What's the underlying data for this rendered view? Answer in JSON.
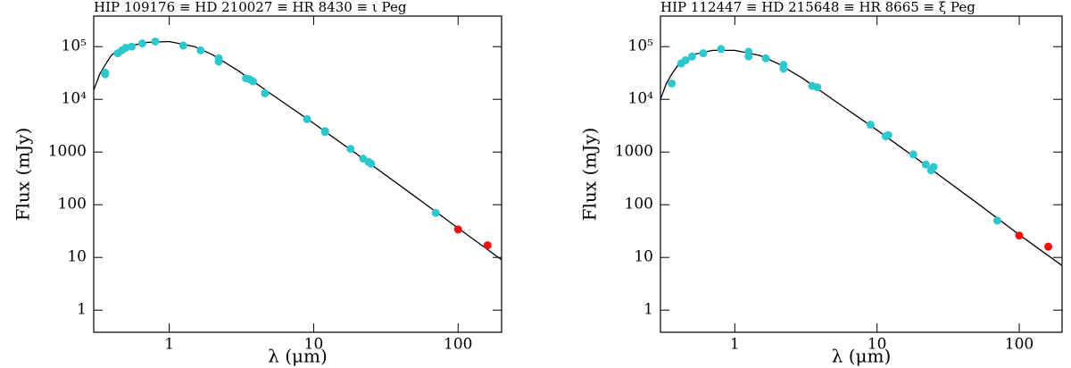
{
  "chart_data": [
    {
      "type": "scatter",
      "title": "HIP 109176 ≡ HD 210027 ≡ HR 8430 ≡ ι Peg",
      "xlabel": "λ (μm)",
      "ylabel": "Flux (mJy)",
      "xscale": "log",
      "yscale": "log",
      "xlim": [
        0.3,
        200
      ],
      "ylim": [
        0.38,
        380000
      ],
      "xticks": [
        1,
        10,
        100
      ],
      "yticks": [
        1,
        10,
        100,
        1000,
        {
          "value": 10000,
          "label": "10⁴"
        },
        {
          "value": 100000,
          "label": "10⁵"
        }
      ],
      "series": [
        {
          "mode": "line",
          "color": "#000000",
          "x": [
            0.3,
            0.33,
            0.36,
            0.4,
            0.5,
            0.7,
            1,
            1.5,
            2,
            3,
            5,
            10,
            20,
            50,
            100,
            200
          ],
          "values": [
            15000,
            30000,
            45000,
            70000,
            100000,
            120000,
            125000,
            100000,
            70000,
            35000,
            13000,
            3500,
            900,
            145,
            36,
            9
          ]
        },
        {
          "mode": "markers",
          "color": "#2ec8cc",
          "x": [
            0.36,
            0.36,
            0.44,
            0.47,
            0.5,
            0.55,
            0.65,
            0.8,
            1.25,
            1.65,
            2.2,
            2.2,
            3.4,
            3.6,
            3.8,
            4.6,
            9,
            12,
            12,
            18,
            22,
            24,
            25,
            70
          ],
          "values": [
            32000,
            30000,
            75000,
            85000,
            95000,
            100000,
            115000,
            125000,
            105000,
            85000,
            60000,
            52000,
            25000,
            24000,
            22000,
            13000,
            4200,
            2500,
            2400,
            1150,
            750,
            650,
            600,
            70
          ]
        },
        {
          "mode": "markers",
          "color": "#ee1111",
          "x": [
            100,
            160
          ],
          "values": [
            34,
            17
          ]
        }
      ]
    },
    {
      "type": "scatter",
      "title": "HIP 112447 ≡ HD 215648 ≡ HR 8665 ≡ ξ Peg",
      "xlabel": "λ (μm)",
      "ylabel": "Flux (mJy)",
      "xscale": "log",
      "yscale": "log",
      "xlim": [
        0.3,
        200
      ],
      "ylim": [
        0.38,
        380000
      ],
      "xticks": [
        1,
        10,
        100
      ],
      "yticks": [
        1,
        10,
        100,
        1000,
        {
          "value": 10000,
          "label": "10⁴"
        },
        {
          "value": 100000,
          "label": "10⁵"
        }
      ],
      "series": [
        {
          "mode": "line",
          "color": "#000000",
          "x": [
            0.3,
            0.33,
            0.36,
            0.4,
            0.5,
            0.7,
            1,
            1.5,
            2,
            3,
            5,
            10,
            20,
            50,
            100,
            200
          ],
          "values": [
            10000,
            20000,
            30000,
            45000,
            70000,
            85000,
            85000,
            68000,
            48000,
            25000,
            9500,
            2600,
            680,
            110,
            27,
            7
          ]
        },
        {
          "mode": "markers",
          "color": "#2ec8cc",
          "x": [
            0.36,
            0.42,
            0.45,
            0.5,
            0.6,
            0.8,
            1.25,
            1.25,
            1.65,
            2.2,
            2.2,
            3.5,
            3.8,
            9,
            11.5,
            12,
            18,
            22,
            24,
            25,
            70
          ],
          "values": [
            20000,
            48000,
            55000,
            65000,
            75000,
            90000,
            80000,
            65000,
            60000,
            45000,
            38000,
            18000,
            17000,
            3300,
            2000,
            2100,
            900,
            580,
            450,
            520,
            50
          ]
        },
        {
          "mode": "markers",
          "color": "#ee1111",
          "x": [
            100,
            160
          ],
          "values": [
            26,
            16
          ]
        }
      ]
    }
  ]
}
